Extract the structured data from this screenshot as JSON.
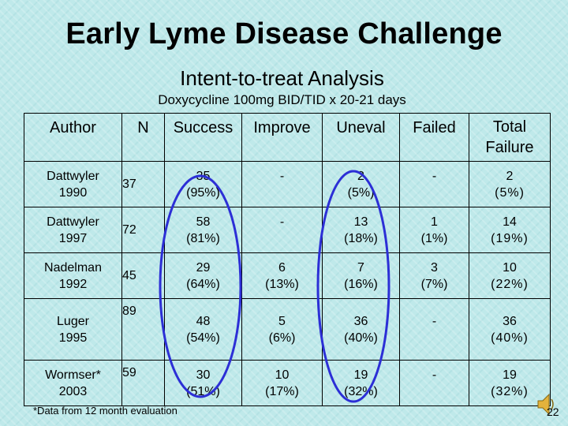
{
  "title": "Early Lyme Disease Challenge",
  "subtitle": "Intent-to-treat  Analysis",
  "regimen": "Doxycycline 100mg BID/TID x 20-21 days",
  "table": {
    "headers": [
      "Author",
      "N",
      "Success",
      "Improve",
      "Uneval",
      "Failed",
      "Total Failure"
    ],
    "rows": [
      {
        "author": [
          "Dattwyler",
          "1990"
        ],
        "n": "37",
        "success": [
          "35",
          "(95%)"
        ],
        "improve": [
          "-",
          ""
        ],
        "uneval": [
          "2",
          "(5%)"
        ],
        "failed": [
          "-",
          ""
        ],
        "total": [
          "2",
          "(5%)"
        ]
      },
      {
        "author": [
          "Dattwyler",
          "1997"
        ],
        "n": "72",
        "success": [
          "58",
          "(81%)"
        ],
        "improve": [
          "-",
          ""
        ],
        "uneval": [
          "13",
          "(18%)"
        ],
        "failed": [
          "1",
          "(1%)"
        ],
        "total": [
          "14",
          "(19%)"
        ]
      },
      {
        "author": [
          "Nadelman",
          "1992"
        ],
        "n": "45",
        "success": [
          "29",
          "(64%)"
        ],
        "improve": [
          "6",
          "(13%)"
        ],
        "uneval": [
          "7",
          "(16%)"
        ],
        "failed": [
          "3",
          "(7%)"
        ],
        "total": [
          "10",
          "(22%)"
        ]
      },
      {
        "author": [
          "Luger",
          "1995"
        ],
        "n": "89",
        "success": [
          "48",
          "(54%)"
        ],
        "improve": [
          "5",
          "(6%)"
        ],
        "uneval": [
          "36",
          "(40%)"
        ],
        "failed": [
          "-",
          ""
        ],
        "total": [
          "36",
          "(40%)"
        ]
      },
      {
        "author": [
          "Wormser*",
          "2003"
        ],
        "n": "59",
        "success": [
          "30",
          "(51%)"
        ],
        "improve": [
          "10",
          "(17%)"
        ],
        "uneval": [
          "19",
          "(32%)"
        ],
        "failed": [
          "-",
          ""
        ],
        "total": [
          "19",
          "(32%)"
        ]
      }
    ]
  },
  "footnote": "*Data from 12 month evaluation",
  "page_number": "22",
  "colors": {
    "background": "#bfe9ea",
    "highlight_oval": "#2c2fd6",
    "speaker": "#e3b23c"
  }
}
